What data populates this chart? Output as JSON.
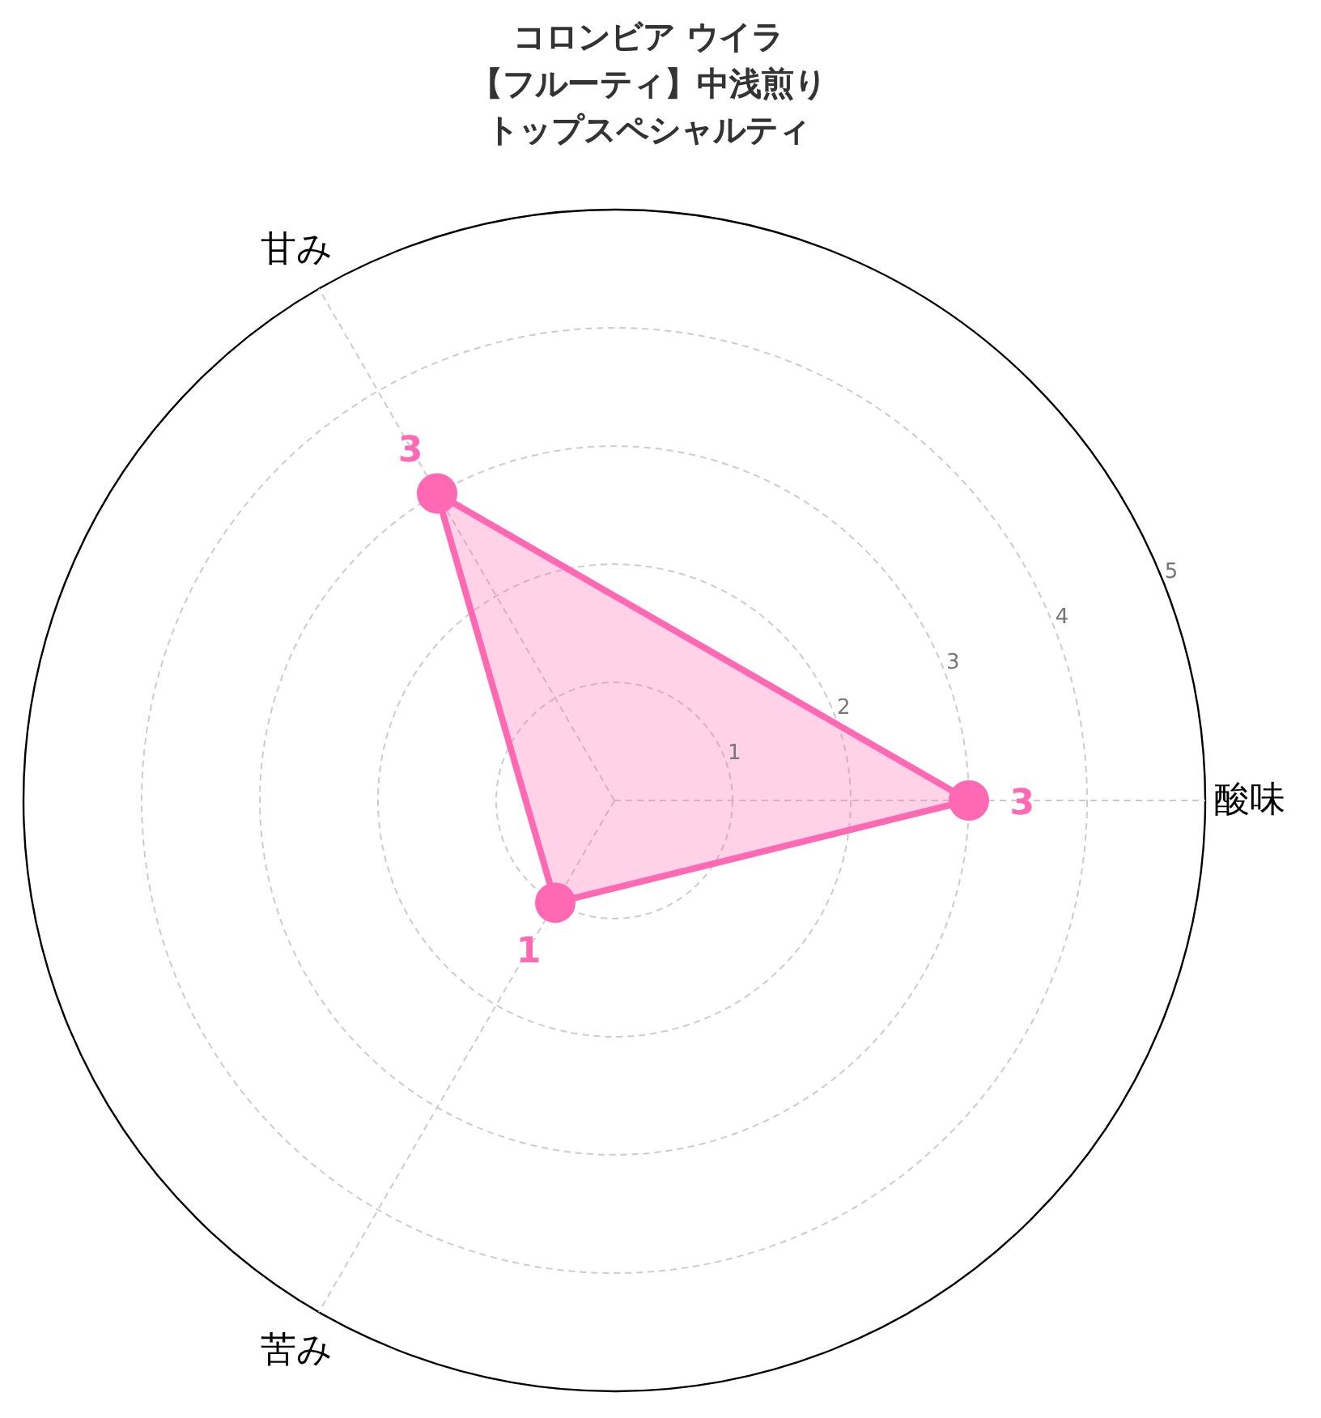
{
  "chart_data": {
    "type": "radar",
    "title": "コロンビア ウイラ【フルーティ】中浅煎りトップスペシャルティ",
    "categories": [
      "酸味",
      "苦み",
      "甘み"
    ],
    "series": [
      {
        "color": "#ff69b4",
        "values": [
          3,
          1,
          3
        ]
      }
    ],
    "ylim": [
      0,
      5
    ],
    "yticks": [
      1,
      2,
      3,
      4,
      5
    ],
    "grid": true,
    "data_labels": true,
    "marker": "circle",
    "line_style": "solid"
  }
}
